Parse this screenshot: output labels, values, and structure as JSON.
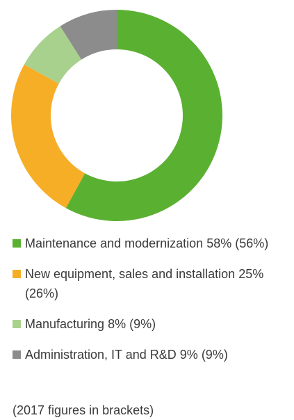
{
  "chart_data": {
    "type": "donut",
    "categories": [
      "Maintenance and modernization",
      "New equipment, sales and installation",
      "Manufacturing",
      "Administration, IT and R&D"
    ],
    "values": [
      58,
      25,
      8,
      9
    ],
    "value_labels": [
      "58%",
      "25%",
      "8%",
      "9%"
    ],
    "previous_values": [
      56,
      26,
      9,
      9
    ],
    "previous_labels": [
      "(56%)",
      "(26%)",
      "(9%)",
      "(9%)"
    ],
    "colors": [
      "#5ab031",
      "#f6ae27",
      "#a9d18e",
      "#8c8c8c"
    ],
    "note": "(2017 figures in brackets)"
  }
}
